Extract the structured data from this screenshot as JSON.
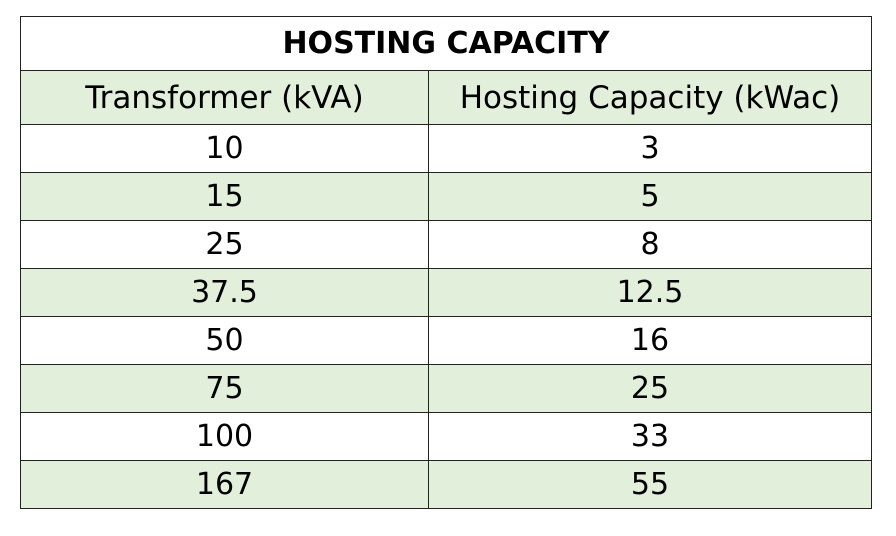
{
  "table": {
    "title": "HOSTING CAPACITY",
    "headers": [
      "Transformer (kVA)",
      "Hosting Capacity (kWac)"
    ],
    "rows": [
      [
        "10",
        "3"
      ],
      [
        "15",
        "5"
      ],
      [
        "25",
        "8"
      ],
      [
        "37.5",
        "12.5"
      ],
      [
        "50",
        "16"
      ],
      [
        "75",
        "25"
      ],
      [
        "100",
        "33"
      ],
      [
        "167",
        "55"
      ]
    ]
  }
}
